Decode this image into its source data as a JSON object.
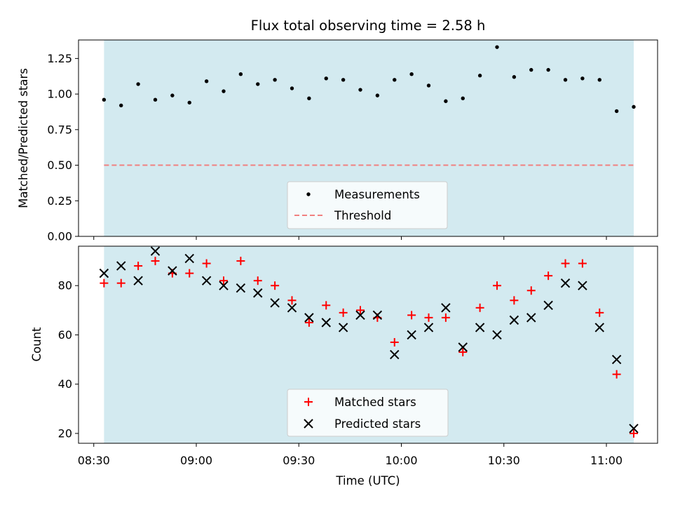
{
  "chart_data": {
    "type": "scatter",
    "title": "Flux total observing time = 2.58 h",
    "xlabel": "Time (UTC)",
    "x_ticks": [
      "08:30",
      "09:00",
      "09:30",
      "10:00",
      "10:30",
      "11:00"
    ],
    "shaded_span_color": "#d3eaf0",
    "times": [
      "08:33",
      "08:38",
      "08:43",
      "08:48",
      "08:53",
      "08:58",
      "09:03",
      "09:08",
      "09:13",
      "09:18",
      "09:23",
      "09:28",
      "09:33",
      "09:38",
      "09:43",
      "09:48",
      "09:53",
      "09:58",
      "10:03",
      "10:08",
      "10:13",
      "10:18",
      "10:23",
      "10:28",
      "10:33",
      "10:38",
      "10:43",
      "10:48",
      "10:53",
      "10:58",
      "11:03",
      "11:08"
    ],
    "panels": [
      {
        "ylabel": "Matched/Predicted stars",
        "ylim": [
          0.0,
          1.38
        ],
        "y_ticks": [
          "0.00",
          "0.25",
          "0.50",
          "0.75",
          "1.00",
          "1.25"
        ],
        "legend": "bottom-center",
        "series": [
          {
            "name": "Measurements",
            "marker": "dot",
            "color": "#000000",
            "values": [
              0.96,
              0.92,
              1.07,
              0.96,
              0.99,
              0.94,
              1.09,
              1.02,
              1.14,
              1.07,
              1.1,
              1.04,
              0.97,
              1.11,
              1.1,
              1.03,
              0.99,
              1.1,
              1.14,
              1.06,
              0.95,
              0.97,
              1.13,
              1.33,
              1.12,
              1.17,
              1.17,
              1.1,
              1.11,
              1.1,
              0.88,
              0.91
            ]
          },
          {
            "name": "Threshold",
            "marker": "dashed-line",
            "color": "#f08080",
            "value": 0.5
          }
        ]
      },
      {
        "ylabel": "Count",
        "ylim": [
          16,
          96
        ],
        "y_ticks": [
          "20",
          "40",
          "60",
          "80"
        ],
        "legend": "bottom-center",
        "series": [
          {
            "name": "Matched stars",
            "marker": "plus",
            "color": "#ff0000",
            "values": [
              81,
              81,
              88,
              90,
              85,
              85,
              89,
              82,
              90,
              82,
              80,
              74,
              65,
              72,
              69,
              70,
              67,
              57,
              68,
              67,
              67,
              53,
              71,
              80,
              74,
              78,
              84,
              89,
              89,
              69,
              44,
              20
            ]
          },
          {
            "name": "Predicted stars",
            "marker": "x",
            "color": "#000000",
            "values": [
              85,
              88,
              82,
              94,
              86,
              91,
              82,
              80,
              79,
              77,
              73,
              71,
              67,
              65,
              63,
              68,
              68,
              52,
              60,
              63,
              71,
              55,
              63,
              60,
              66,
              67,
              72,
              81,
              80,
              63,
              50,
              22
            ]
          }
        ]
      }
    ]
  }
}
